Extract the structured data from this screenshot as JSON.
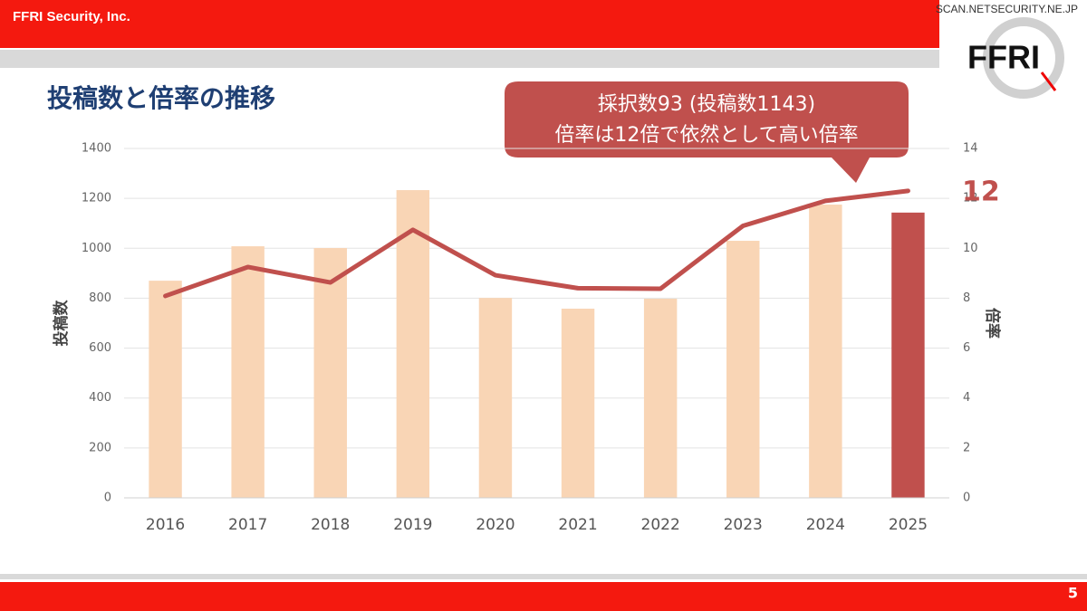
{
  "header": {
    "company": "FFRI Security, Inc.",
    "site": "SCAN.NETSECURITY.NE.JP",
    "logo": "FFRI",
    "page": "5"
  },
  "chart_data": {
    "type": "bar_line",
    "title": "投稿数と倍率の推移",
    "callout": [
      "採択数93 (投稿数1143)",
      "倍率は12倍で依然として高い倍率"
    ],
    "y_label": "投稿数",
    "y2_label": "倍率",
    "categories": [
      "2016",
      "2017",
      "2018",
      "2019",
      "2020",
      "2021",
      "2022",
      "2023",
      "2024",
      "2025"
    ],
    "series": [
      {
        "name": "投稿数",
        "type": "bar",
        "values": [
          870,
          1008,
          1001,
          1233,
          801,
          758,
          798,
          1030,
          1175,
          1143
        ],
        "colors": [
          "#f9d5b5",
          "#f9d5b5",
          "#f9d5b5",
          "#f9d5b5",
          "#f9d5b5",
          "#f9d5b5",
          "#f9d5b5",
          "#f9d5b5",
          "#f9d5b5",
          "#c0504d"
        ]
      },
      {
        "name": "倍率",
        "type": "line",
        "axis": "y2",
        "color": "#c0504d",
        "values": [
          8.09,
          9.25,
          8.63,
          10.74,
          8.92,
          8.4,
          8.38,
          10.9,
          11.9,
          12.3
        ],
        "value_labels": [
          null,
          null,
          null,
          null,
          null,
          null,
          null,
          null,
          null,
          "12"
        ]
      }
    ],
    "ylim": [
      0,
      1400
    ],
    "yticks": [
      0,
      200,
      400,
      600,
      800,
      1000,
      1200,
      1400
    ],
    "y2lim": [
      0,
      14
    ],
    "y2ticks": [
      0,
      2,
      4,
      6,
      8,
      10,
      12,
      14
    ],
    "grid": true
  }
}
